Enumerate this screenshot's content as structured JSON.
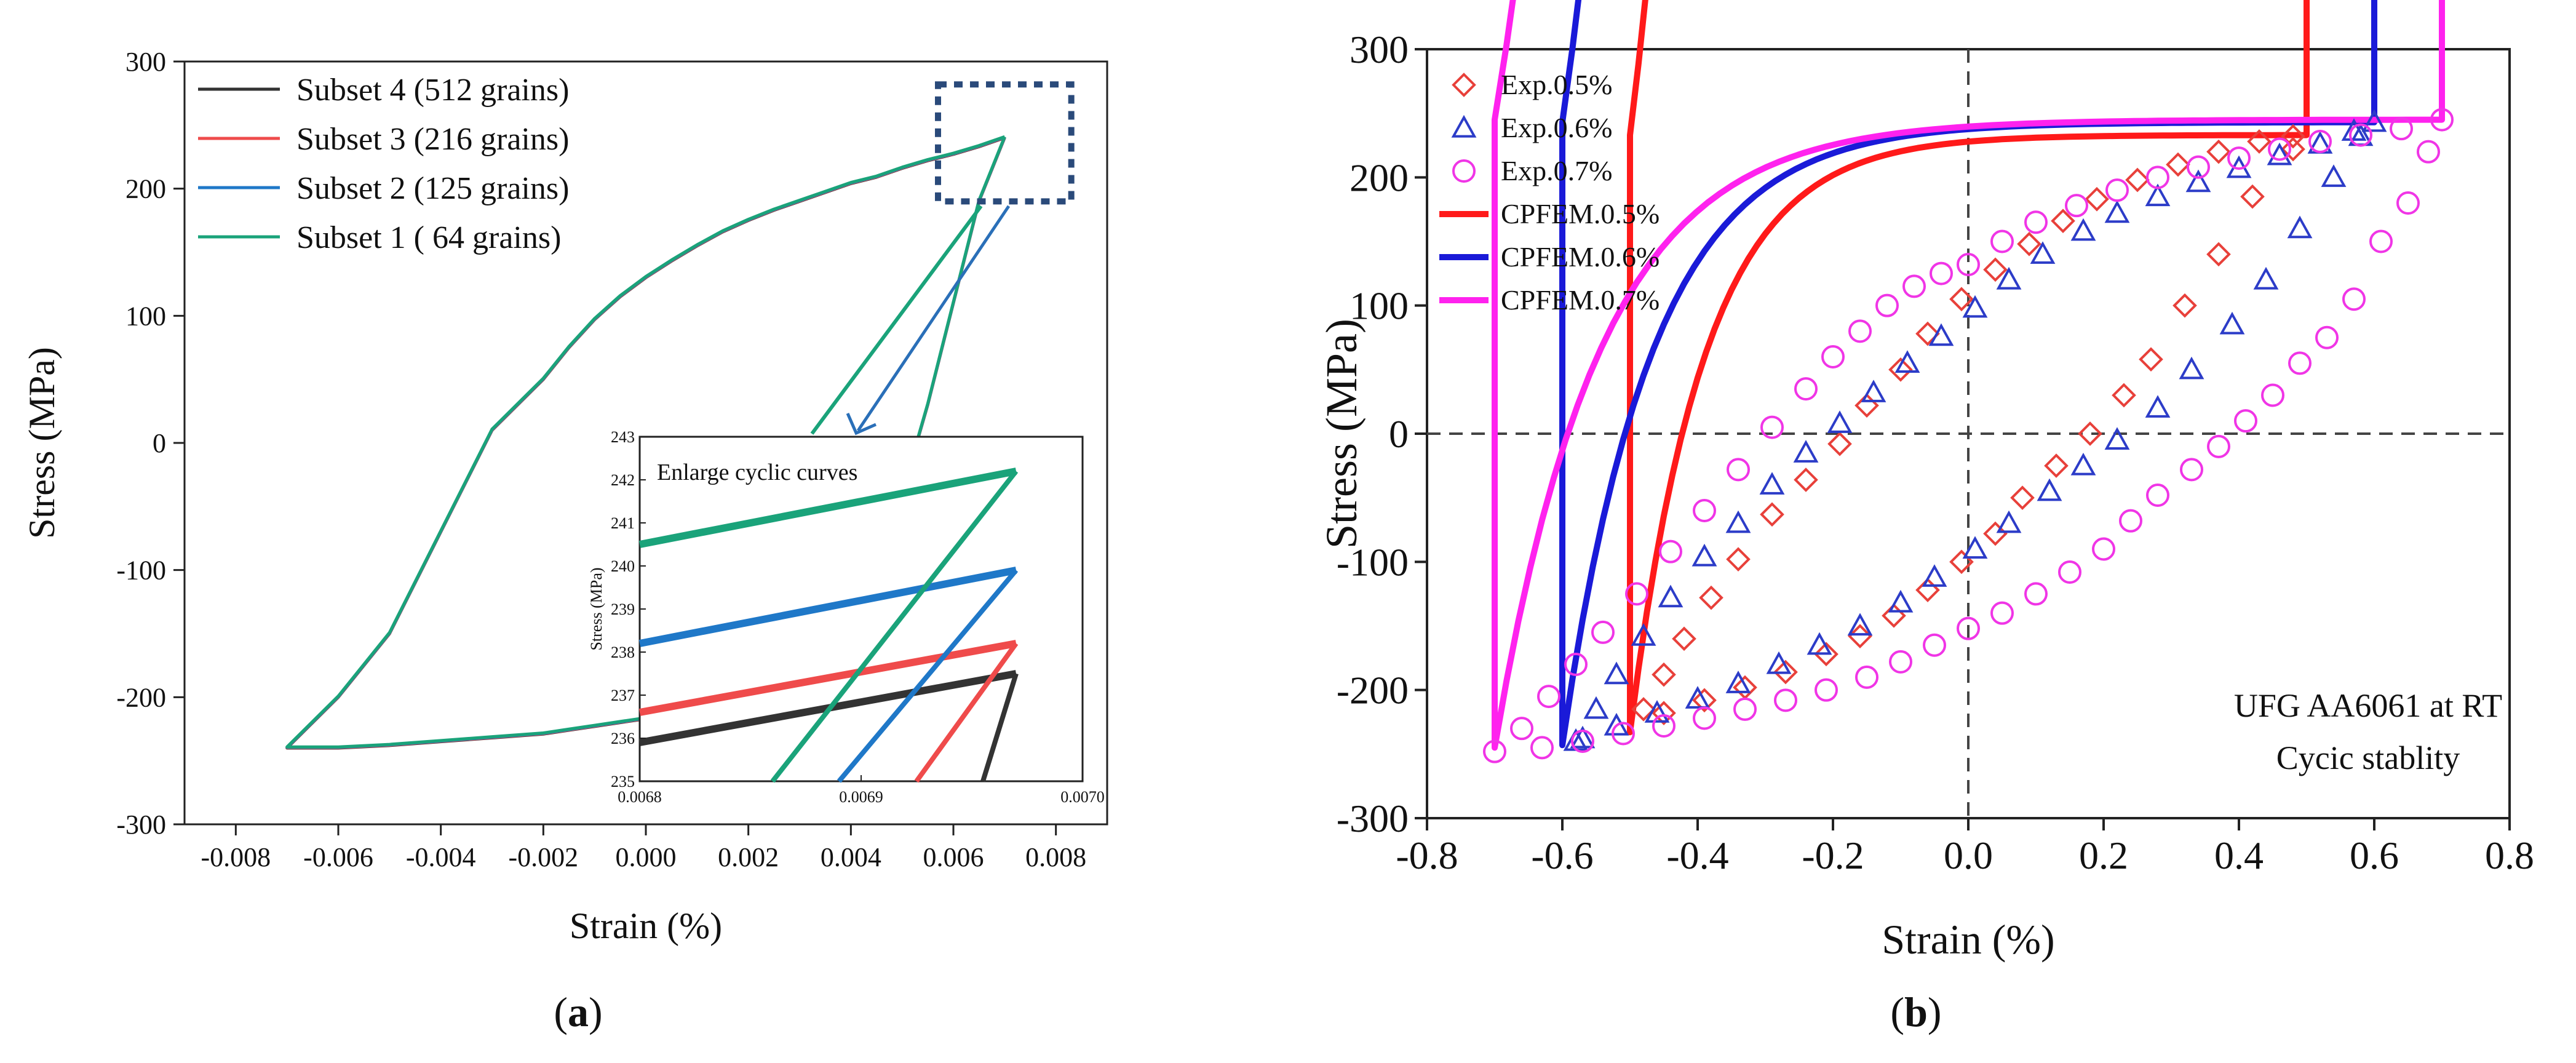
{
  "panels": [
    {
      "label_open": "(",
      "label_letter": "a",
      "label_close": ")"
    },
    {
      "label_open": "(",
      "label_letter": "b",
      "label_close": ")"
    }
  ],
  "chart_data": [
    {
      "id": "a",
      "type": "line",
      "title": "",
      "xlabel": "Strain (%)",
      "ylabel": "Stress (MPa)",
      "xlim": [
        -0.009,
        0.009
      ],
      "ylim": [
        -300,
        300
      ],
      "xticks": [
        -0.008,
        -0.006,
        -0.004,
        -0.002,
        0.0,
        0.002,
        0.004,
        0.006,
        0.008
      ],
      "xtick_labels": [
        "-0.008",
        "-0.006",
        "-0.004",
        "-0.002",
        "0.000",
        "0.002",
        "0.004",
        "0.006",
        "0.008"
      ],
      "yticks": [
        -300,
        -200,
        -100,
        0,
        100,
        200,
        300
      ],
      "ytick_labels": [
        "-300",
        "-200",
        "-100",
        "0",
        "100",
        "200",
        "300"
      ],
      "legend_position": "top-left",
      "colors": {
        "Subset 4 (512 grains)": "#333333",
        "Subset 3 (216 grains)": "#ef4b4b",
        "Subset 2 (125 grains)": "#1f78c8",
        "Subset 1 (  64 grains)": "#1aa37a"
      },
      "series": [
        {
          "name": "Subset 4 (512 grains)",
          "color": "#333333"
        },
        {
          "name": "Subset 3 (216 grains)",
          "color": "#ef4b4b"
        },
        {
          "name": "Subset 2 (125 grains)",
          "color": "#1f78c8"
        },
        {
          "name": "Subset 1 (  64 grains)",
          "color": "#1aa37a"
        }
      ],
      "loop_x": [
        0.007,
        0.0065,
        0.006,
        0.0055,
        0.005,
        0.0045,
        0.004,
        0.0035,
        0.003,
        0.0025,
        0.002,
        0.0015,
        0.001,
        0.0005,
        0.0,
        -0.0005,
        -0.001,
        -0.0015,
        -0.002,
        -0.003,
        -0.004,
        -0.005,
        -0.006,
        -0.007
      ],
      "loop_upper_y": [
        240,
        233,
        227,
        222,
        216,
        209,
        204,
        197,
        190,
        183,
        175,
        166,
        155,
        143,
        130,
        115,
        97,
        75,
        50,
        10,
        -70,
        -150,
        -200,
        -240
      ],
      "loop_lower_y": [
        240,
        190,
        110,
        30,
        -40,
        -100,
        -140,
        -165,
        -180,
        -190,
        -198,
        -205,
        -210,
        -214,
        -217,
        -220,
        -223,
        -226,
        -229,
        -232,
        -235,
        -238,
        -240,
        -240
      ],
      "zoom_box": {
        "x": [
          0.0057,
          0.0083
        ],
        "y": [
          190,
          282
        ]
      },
      "inset": {
        "title": "Enlarge cyclic curves",
        "ylabel": "Stress (MPa)",
        "xlim": [
          0.0068,
          0.007
        ],
        "ylim": [
          235,
          243
        ],
        "xticks": [
          0.0068,
          0.0069,
          0.007
        ],
        "xtick_labels": [
          "0.0068",
          "0.0069",
          "0.0070"
        ],
        "yticks": [
          235,
          236,
          237,
          238,
          239,
          240,
          241,
          242,
          243
        ],
        "ytick_labels": [
          "235",
          "236",
          "237",
          "238",
          "239",
          "240",
          "241",
          "242",
          "243"
        ],
        "series": [
          {
            "name": "Subset 4 (512 grains)",
            "color": "#333333",
            "x": [
              0.0068,
              0.00697
            ],
            "y": [
              235.9,
              237.5
            ],
            "down_x": [
              0.006955,
              0.00697
            ],
            "down_y": [
              235.0,
              237.5
            ]
          },
          {
            "name": "Subset 3 (216 grains)",
            "color": "#ef4b4b",
            "x": [
              0.0068,
              0.00697
            ],
            "y": [
              236.6,
              238.2
            ],
            "down_x": [
              0.006925,
              0.00697
            ],
            "down_y": [
              235.0,
              238.2
            ]
          },
          {
            "name": "Subset 2 (125 grains)",
            "color": "#1f78c8",
            "x": [
              0.0068,
              0.00697
            ],
            "y": [
              238.2,
              239.9
            ],
            "down_x": [
              0.00689,
              0.00697
            ],
            "down_y": [
              235.0,
              239.9
            ]
          },
          {
            "name": "Subset 1 (  64 grains)",
            "color": "#1aa37a",
            "x": [
              0.0068,
              0.00697
            ],
            "y": [
              240.5,
              242.2
            ],
            "down_x": [
              0.00686,
              0.00697
            ],
            "down_y": [
              235.0,
              242.2
            ]
          }
        ]
      }
    },
    {
      "id": "b",
      "type": "scatter",
      "title": "",
      "xlabel": "Strain (%)",
      "ylabel": "Stress (MPa)",
      "xlim": [
        -0.8,
        0.8
      ],
      "ylim": [
        -300,
        300
      ],
      "xticks": [
        -0.8,
        -0.6,
        -0.4,
        -0.2,
        0.0,
        0.2,
        0.4,
        0.6,
        0.8
      ],
      "xtick_labels": [
        "-0.8",
        "-0.6",
        "-0.4",
        "-0.2",
        "0.0",
        "0.2",
        "0.4",
        "0.6",
        "0.8"
      ],
      "yticks": [
        -300,
        -200,
        -100,
        0,
        100,
        200,
        300
      ],
      "ytick_labels": [
        "-300",
        "-200",
        "-100",
        "0",
        "100",
        "200",
        "300"
      ],
      "legend_position": "top-left",
      "annotation_lines": [
        "UFG AA6061 at RT",
        "Cycic stablity"
      ],
      "reference_lines": {
        "x": 0,
        "y": 0,
        "style": "dashed"
      },
      "series": [
        {
          "name": "Exp.0.5%",
          "kind": "marker",
          "marker": "diamond",
          "color": "#e8403a",
          "amp": 0.5,
          "peak": 233,
          "upper_x": [
            -0.48,
            -0.45,
            -0.42,
            -0.38,
            -0.34,
            -0.29,
            -0.24,
            -0.19,
            -0.15,
            -0.1,
            -0.06,
            -0.01,
            0.04,
            0.09,
            0.14,
            0.19,
            0.25,
            0.31,
            0.37,
            0.43,
            0.48
          ],
          "upper_y": [
            -215,
            -188,
            -160,
            -128,
            -98,
            -63,
            -36,
            -8,
            22,
            50,
            78,
            105,
            128,
            148,
            166,
            183,
            198,
            210,
            220,
            228,
            232
          ],
          "lower_x": [
            0.48,
            0.42,
            0.37,
            0.32,
            0.27,
            0.23,
            0.18,
            0.13,
            0.08,
            0.04,
            -0.01,
            -0.06,
            -0.11,
            -0.16,
            -0.21,
            -0.27,
            -0.33,
            -0.39,
            -0.45
          ],
          "lower_y": [
            222,
            185,
            140,
            100,
            58,
            30,
            0,
            -25,
            -50,
            -78,
            -100,
            -122,
            -142,
            -158,
            -172,
            -186,
            -198,
            -208,
            -218
          ]
        },
        {
          "name": "Exp.0.6%",
          "kind": "marker",
          "marker": "triangle",
          "color": "#2c3cc8",
          "amp": 0.6,
          "peak": 243,
          "upper_x": [
            -0.58,
            -0.55,
            -0.52,
            -0.48,
            -0.44,
            -0.39,
            -0.34,
            -0.29,
            -0.24,
            -0.19,
            -0.14,
            -0.09,
            -0.04,
            0.01,
            0.06,
            0.11,
            0.17,
            0.22,
            0.28,
            0.34,
            0.4,
            0.46,
            0.52,
            0.57,
            0.6
          ],
          "upper_y": [
            -240,
            -215,
            -188,
            -158,
            -128,
            -96,
            -70,
            -40,
            -15,
            8,
            32,
            55,
            76,
            98,
            120,
            140,
            158,
            172,
            185,
            196,
            207,
            217,
            226,
            236,
            243
          ],
          "lower_x": [
            0.58,
            0.54,
            0.49,
            0.44,
            0.39,
            0.33,
            0.28,
            0.22,
            0.17,
            0.12,
            0.06,
            0.01,
            -0.05,
            -0.1,
            -0.16,
            -0.22,
            -0.28,
            -0.34,
            -0.4,
            -0.46,
            -0.52,
            -0.57
          ],
          "lower_y": [
            232,
            200,
            160,
            120,
            85,
            50,
            20,
            -5,
            -25,
            -45,
            -70,
            -90,
            -112,
            -132,
            -150,
            -165,
            -180,
            -195,
            -207,
            -218,
            -228,
            -238
          ]
        },
        {
          "name": "Exp.0.7%",
          "kind": "marker",
          "marker": "circle",
          "color": "#f035e6",
          "amp": 0.7,
          "peak": 245,
          "upper_x": [
            -0.7,
            -0.66,
            -0.62,
            -0.58,
            -0.54,
            -0.49,
            -0.44,
            -0.39,
            -0.34,
            -0.29,
            -0.24,
            -0.2,
            -0.16,
            -0.12,
            -0.08,
            -0.04,
            0.0,
            0.05,
            0.1,
            0.16,
            0.22,
            0.28,
            0.34,
            0.4,
            0.46,
            0.52,
            0.58,
            0.64,
            0.7
          ],
          "upper_y": [
            -248,
            -230,
            -205,
            -180,
            -155,
            -125,
            -92,
            -60,
            -28,
            5,
            35,
            60,
            80,
            100,
            115,
            125,
            132,
            150,
            165,
            178,
            190,
            200,
            208,
            215,
            222,
            228,
            233,
            238,
            245
          ],
          "lower_x": [
            0.68,
            0.65,
            0.61,
            0.57,
            0.53,
            0.49,
            0.45,
            0.41,
            0.37,
            0.33,
            0.28,
            0.24,
            0.2,
            0.15,
            0.1,
            0.05,
            0.0,
            -0.05,
            -0.1,
            -0.15,
            -0.21,
            -0.27,
            -0.33,
            -0.39,
            -0.45,
            -0.51,
            -0.57,
            -0.63
          ],
          "lower_y": [
            220,
            180,
            150,
            105,
            75,
            55,
            30,
            10,
            -10,
            -28,
            -48,
            -68,
            -90,
            -108,
            -125,
            -140,
            -152,
            -165,
            -178,
            -190,
            -200,
            -208,
            -215,
            -222,
            -228,
            -234,
            -240,
            -245
          ]
        },
        {
          "name": "CPFEM.0.5%",
          "kind": "line",
          "color": "#ff1a1a",
          "amp": 0.5,
          "peak": 233
        },
        {
          "name": "CPFEM.0.6%",
          "kind": "line",
          "color": "#1a1ad8",
          "amp": 0.6,
          "peak": 243
        },
        {
          "name": "CPFEM.0.7%",
          "kind": "line",
          "color": "#ff22ee",
          "amp": 0.7,
          "peak": 245
        }
      ]
    }
  ]
}
